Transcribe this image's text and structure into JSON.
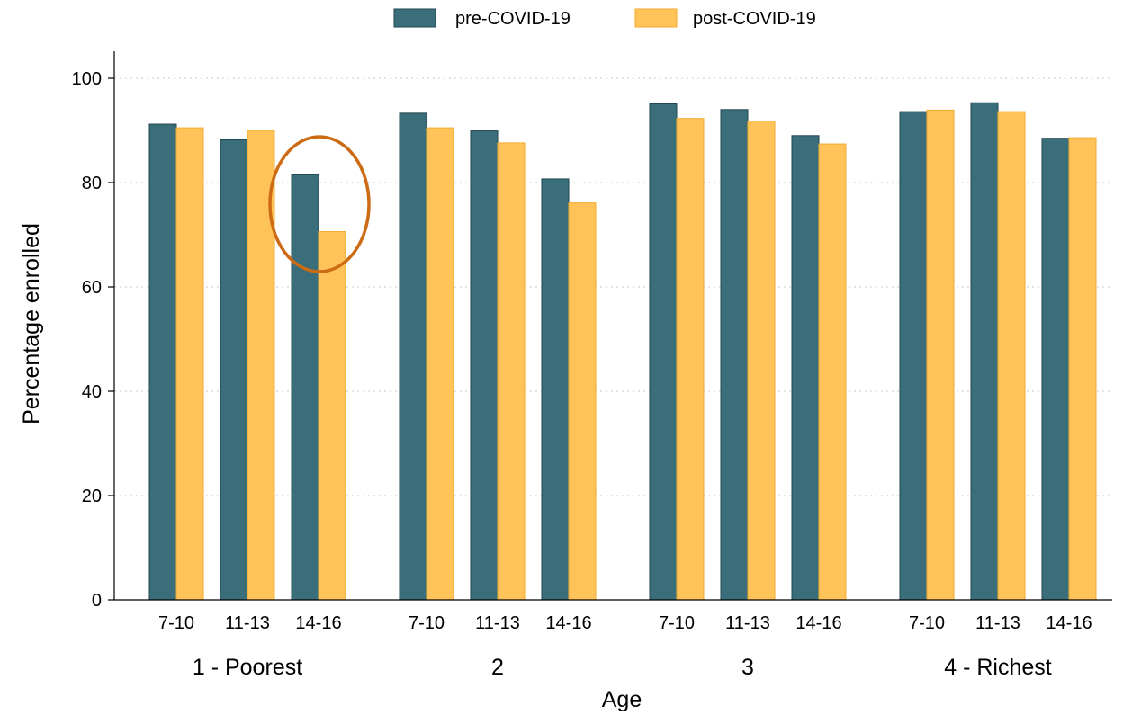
{
  "chart_data": {
    "type": "bar",
    "xlabel": "Age",
    "ylabel": "Percentage enrolled",
    "ylim": [
      0,
      105
    ],
    "yticks": [
      0,
      20,
      40,
      60,
      80,
      100
    ],
    "grid": "horizontal dotted",
    "legend_position": "top",
    "groups": [
      {
        "label": "1 - Poorest",
        "categories": [
          "7-10",
          "11-13",
          "14-16"
        ]
      },
      {
        "label": "2",
        "categories": [
          "7-10",
          "11-13",
          "14-16"
        ]
      },
      {
        "label": "3",
        "categories": [
          "7-10",
          "11-13",
          "14-16"
        ]
      },
      {
        "label": "4 - Richest",
        "categories": [
          "7-10",
          "11-13",
          "14-16"
        ]
      }
    ],
    "series": [
      {
        "name": "pre-COVID-19",
        "color": "#3b6e7b",
        "edge": "#1f4550",
        "values": [
          [
            91.2,
            88.2,
            81.5
          ],
          [
            93.3,
            89.9,
            80.7
          ],
          [
            95.1,
            94.0,
            89.0
          ],
          [
            93.6,
            95.3,
            88.5
          ]
        ]
      },
      {
        "name": "post-COVID-19",
        "color": "#ffc35a",
        "edge": "#f2aa30",
        "values": [
          [
            90.5,
            90.0,
            70.6
          ],
          [
            90.5,
            87.6,
            76.1
          ],
          [
            92.3,
            91.8,
            87.4
          ],
          [
            93.9,
            93.6,
            88.6
          ]
        ]
      }
    ],
    "annotation": {
      "shape": "ellipse",
      "color": "#cc6b14",
      "group_index": 0,
      "category_index": 2
    }
  }
}
